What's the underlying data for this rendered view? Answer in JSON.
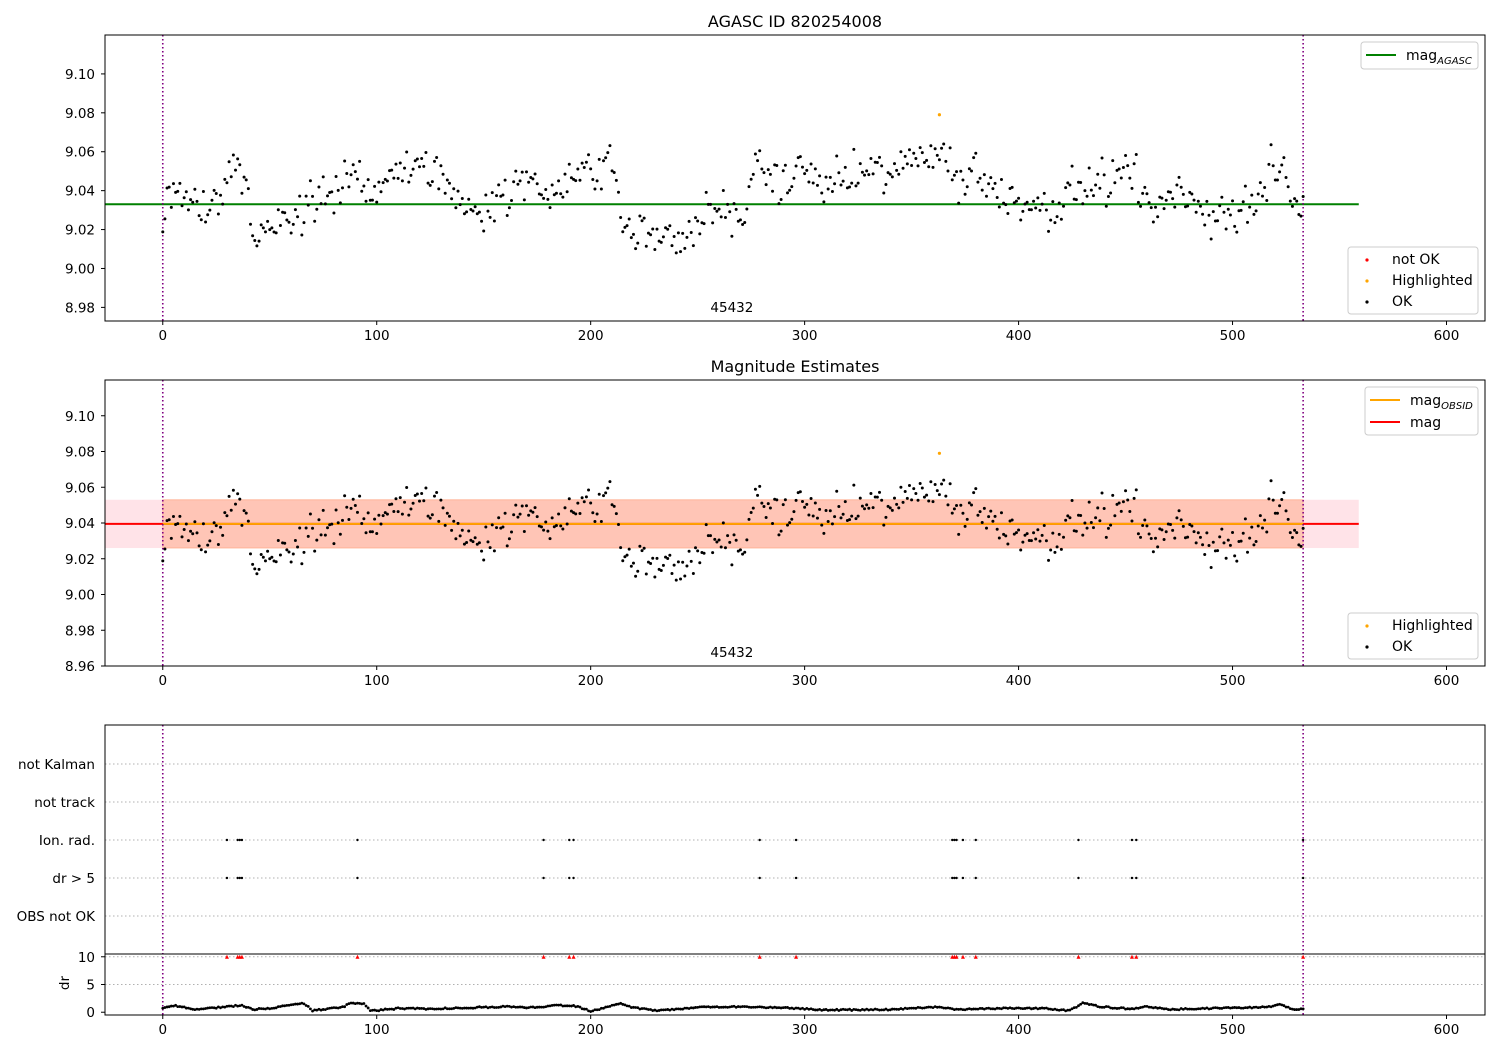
{
  "colors": {
    "ok": "#000000",
    "highlighted": "#ffa500",
    "not_ok": "#ff0000",
    "agasc_line": "#008000",
    "obsid_line": "#ffa500",
    "mean_line": "#ff0000",
    "band_outer": "#ffc0cb",
    "band_inner": "#ffa07a",
    "obs_boundary": "#800080",
    "flag_grid": "#b0b0b0",
    "axes": "#000000"
  },
  "chart_data": [
    {
      "type": "scatter",
      "title": "AGASC ID 820254008",
      "xlim": [
        -27,
        618
      ],
      "ylim": [
        8.973,
        9.12
      ],
      "xticks": [
        "0",
        "100",
        "200",
        "300",
        "400",
        "500",
        "600"
      ],
      "yticks": [
        "8.98",
        "9.00",
        "9.02",
        "9.04",
        "9.06",
        "9.08",
        "9.10"
      ],
      "obsid_label": "45432",
      "obsid_label_x": 266,
      "obs_boundaries": [
        0,
        533
      ],
      "hlines": [
        {
          "name": "mag_AGASC",
          "y": 9.033,
          "x0": -27,
          "x1": 559,
          "color_key": "agasc_line"
        }
      ],
      "legend_upper": {
        "position": "top-right",
        "items": [
          {
            "label": "mag",
            "sub": "AGASC",
            "color_key": "agasc_line"
          }
        ]
      },
      "legend_lower": {
        "position": "lower-right",
        "items": [
          {
            "label": "not OK",
            "color_key": "not_ok"
          },
          {
            "label": "Highlighted",
            "color_key": "highlighted"
          },
          {
            "label": "OK",
            "color_key": "ok"
          }
        ]
      },
      "anchors": [
        [
          0,
          9.022
        ],
        [
          3,
          9.04
        ],
        [
          7,
          9.043
        ],
        [
          11,
          9.037
        ],
        [
          15,
          9.033
        ],
        [
          20,
          9.031
        ],
        [
          25,
          9.034
        ],
        [
          30,
          9.05
        ],
        [
          35,
          9.052
        ],
        [
          39,
          9.045
        ],
        [
          42,
          9.016
        ],
        [
          48,
          9.019
        ],
        [
          54,
          9.023
        ],
        [
          62,
          9.022
        ],
        [
          68,
          9.036
        ],
        [
          74,
          9.034
        ],
        [
          80,
          9.037
        ],
        [
          86,
          9.05
        ],
        [
          92,
          9.044
        ],
        [
          98,
          9.035
        ],
        [
          105,
          9.05
        ],
        [
          111,
          9.052
        ],
        [
          117,
          9.048
        ],
        [
          123,
          9.052
        ],
        [
          129,
          9.05
        ],
        [
          135,
          9.037
        ],
        [
          142,
          9.034
        ],
        [
          150,
          9.031
        ],
        [
          158,
          9.036
        ],
        [
          166,
          9.041
        ],
        [
          172,
          9.046
        ],
        [
          180,
          9.037
        ],
        [
          188,
          9.048
        ],
        [
          196,
          9.05
        ],
        [
          203,
          9.047
        ],
        [
          210,
          9.06
        ],
        [
          214,
          9.025
        ],
        [
          220,
          9.018
        ],
        [
          228,
          9.017
        ],
        [
          236,
          9.016
        ],
        [
          244,
          9.015
        ],
        [
          252,
          9.026
        ],
        [
          258,
          9.03
        ],
        [
          264,
          9.027
        ],
        [
          270,
          9.026
        ],
        [
          276,
          9.047
        ],
        [
          282,
          9.052
        ],
        [
          288,
          9.041
        ],
        [
          294,
          9.048
        ],
        [
          300,
          9.052
        ],
        [
          306,
          9.044
        ],
        [
          312,
          9.043
        ],
        [
          318,
          9.046
        ],
        [
          324,
          9.048
        ],
        [
          330,
          9.05
        ],
        [
          336,
          9.049
        ],
        [
          342,
          9.048
        ],
        [
          348,
          9.054
        ],
        [
          354,
          9.059
        ],
        [
          360,
          9.06
        ],
        [
          365,
          9.06
        ],
        [
          368,
          9.054
        ],
        [
          372,
          9.04
        ],
        [
          378,
          9.053
        ],
        [
          384,
          9.046
        ],
        [
          390,
          9.037
        ],
        [
          396,
          9.038
        ],
        [
          402,
          9.036
        ],
        [
          408,
          9.033
        ],
        [
          414,
          9.031
        ],
        [
          420,
          9.036
        ],
        [
          426,
          9.04
        ],
        [
          432,
          9.041
        ],
        [
          438,
          9.045
        ],
        [
          444,
          9.043
        ],
        [
          450,
          9.052
        ],
        [
          455,
          9.046
        ],
        [
          460,
          9.029
        ],
        [
          466,
          9.036
        ],
        [
          472,
          9.04
        ],
        [
          478,
          9.034
        ],
        [
          484,
          9.032
        ],
        [
          490,
          9.028
        ],
        [
          496,
          9.031
        ],
        [
          502,
          9.029
        ],
        [
          508,
          9.032
        ],
        [
          514,
          9.038
        ],
        [
          519,
          9.052
        ],
        [
          524,
          9.047
        ],
        [
          529,
          9.032
        ],
        [
          533,
          9.033
        ]
      ],
      "amplitude": 0.0095,
      "highlighted_points": [
        {
          "x": 363,
          "y": 9.079
        }
      ]
    },
    {
      "type": "scatter",
      "title": "Magnitude Estimates",
      "xlim": [
        -27,
        618
      ],
      "ylim": [
        8.96,
        9.12
      ],
      "xticks": [
        "0",
        "100",
        "200",
        "300",
        "400",
        "500",
        "600"
      ],
      "yticks": [
        "8.96",
        "8.98",
        "9.00",
        "9.02",
        "9.04",
        "9.06",
        "9.08",
        "9.10"
      ],
      "obsid_label": "45432",
      "obsid_label_x": 266,
      "obs_boundaries": [
        0,
        533
      ],
      "band_outer": {
        "y0": 9.026,
        "y1": 9.053,
        "x0": -27,
        "x1": 559
      },
      "band_inner": {
        "y0": 9.026,
        "y1": 9.053,
        "x0": 0,
        "x1": 533
      },
      "hlines": [
        {
          "name": "mag",
          "y": 9.0395,
          "x0": -27,
          "x1": 559,
          "color_key": "mean_line"
        },
        {
          "name": "mag_OBSID",
          "y": 9.0395,
          "x0": 0,
          "x1": 533,
          "color_key": "obsid_line"
        }
      ],
      "legend_upper": {
        "position": "top-right",
        "items": [
          {
            "label": "mag",
            "sub": "OBSID",
            "color_key": "obsid_line"
          },
          {
            "label": "mag",
            "sub": "",
            "color_key": "mean_line"
          }
        ]
      },
      "legend_lower": {
        "position": "lower-right",
        "items": [
          {
            "label": "Highlighted",
            "color_key": "highlighted"
          },
          {
            "label": "OK",
            "color_key": "ok"
          }
        ]
      },
      "highlighted_points": [
        {
          "x": 363,
          "y": 9.079
        }
      ]
    },
    {
      "type": "scatter",
      "title": "",
      "xlim": [
        -27,
        618
      ],
      "flag_labels": [
        "not Kalman",
        "not track",
        "Ion. rad.",
        "dr > 5",
        "OBS not OK"
      ],
      "flag_events_x": [
        30,
        35,
        36,
        37,
        91,
        178,
        190,
        192,
        279,
        296,
        369,
        370,
        371,
        374,
        380,
        428,
        453,
        455,
        533
      ],
      "flagged_rows": [
        "Ion. rad.",
        "dr > 5"
      ],
      "dr_ylabel": "dr",
      "dr_ylim": [
        -0.5,
        10.5
      ],
      "dr_yticks": [
        "0",
        "5",
        "10"
      ],
      "dr_clip_value": 10,
      "xticks": [
        "0",
        "100",
        "200",
        "300",
        "400",
        "500",
        "600"
      ],
      "obs_boundaries": [
        0,
        533
      ],
      "dr_anchors": [
        [
          0,
          0.7
        ],
        [
          6,
          1.2
        ],
        [
          14,
          0.5
        ],
        [
          30,
          1.0
        ],
        [
          37,
          1.3
        ],
        [
          42,
          0.5
        ],
        [
          52,
          0.8
        ],
        [
          60,
          1.3
        ],
        [
          66,
          1.6
        ],
        [
          70,
          0.3
        ],
        [
          84,
          0.9
        ],
        [
          88,
          1.7
        ],
        [
          94,
          1.6
        ],
        [
          97,
          0.2
        ],
        [
          110,
          0.7
        ],
        [
          126,
          0.6
        ],
        [
          140,
          0.8
        ],
        [
          160,
          1.0
        ],
        [
          175,
          0.8
        ],
        [
          182,
          1.3
        ],
        [
          192,
          1.2
        ],
        [
          200,
          0.2
        ],
        [
          208,
          0.9
        ],
        [
          214,
          1.6
        ],
        [
          220,
          0.8
        ],
        [
          232,
          0.3
        ],
        [
          250,
          0.9
        ],
        [
          270,
          1.0
        ],
        [
          292,
          0.8
        ],
        [
          310,
          0.4
        ],
        [
          340,
          0.5
        ],
        [
          362,
          1.0
        ],
        [
          370,
          0.5
        ],
        [
          392,
          0.7
        ],
        [
          412,
          0.7
        ],
        [
          424,
          0.3
        ],
        [
          430,
          1.7
        ],
        [
          438,
          1.0
        ],
        [
          452,
          0.6
        ],
        [
          460,
          1.0
        ],
        [
          470,
          0.5
        ],
        [
          500,
          0.8
        ],
        [
          516,
          0.9
        ],
        [
          522,
          1.4
        ],
        [
          528,
          0.6
        ],
        [
          533,
          0.6
        ]
      ]
    }
  ]
}
